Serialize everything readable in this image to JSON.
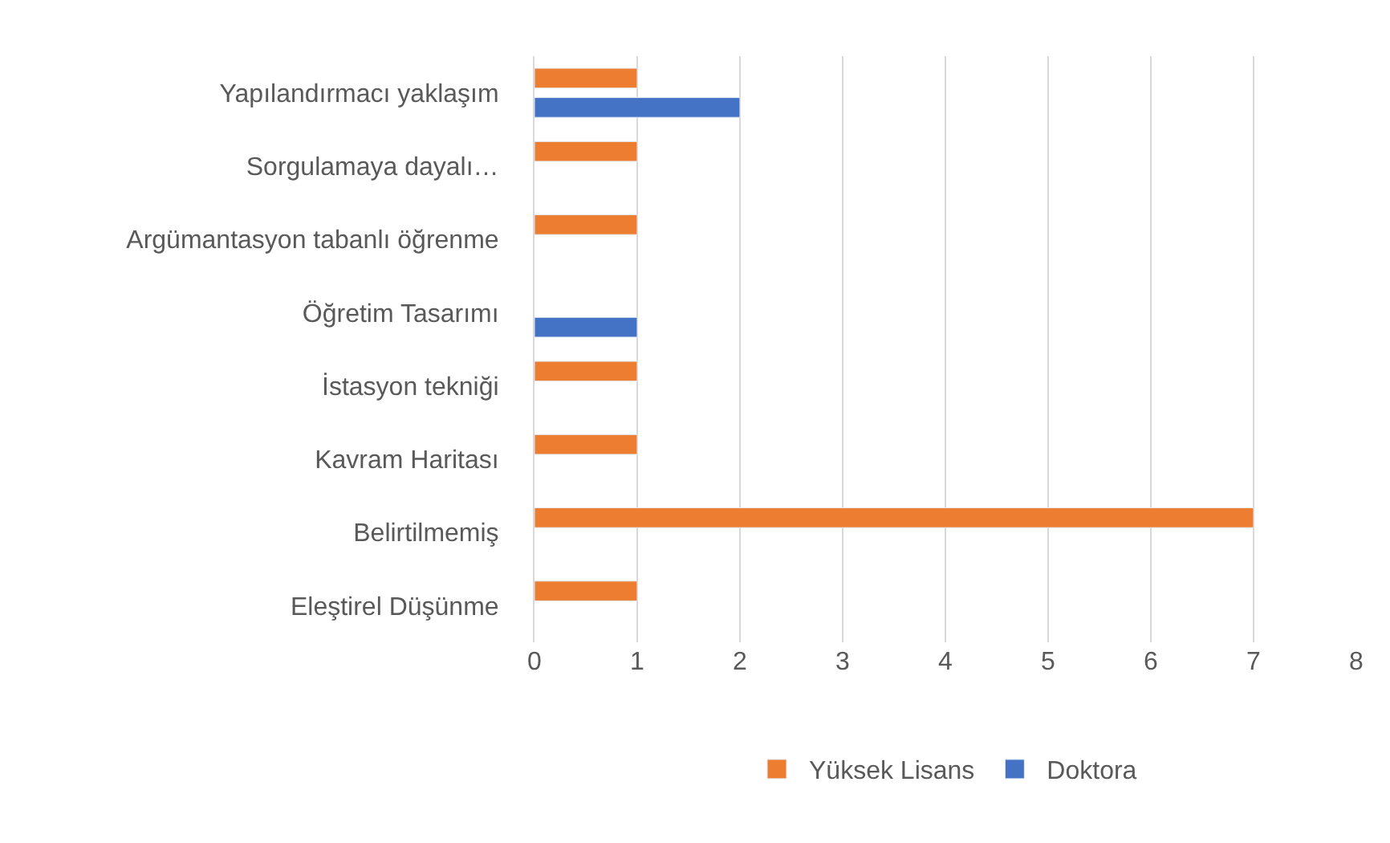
{
  "chart_data": {
    "type": "bar",
    "orientation": "horizontal",
    "categories": [
      "Yapılandırmacı yaklaşım",
      "Sorgulamaya dayalı…",
      "Argümantasyon tabanlı öğrenme",
      "Öğretim Tasarımı",
      "İstasyon tekniği",
      "Kavram Haritası",
      "Belirtilmemiş",
      "Eleştirel Düşünme"
    ],
    "series": [
      {
        "name": "Yüksek Lisans",
        "color": "#ed7d31",
        "values": [
          1,
          1,
          1,
          null,
          1,
          1,
          7,
          1
        ]
      },
      {
        "name": "Doktora",
        "color": "#4472c4",
        "values": [
          2,
          null,
          null,
          1,
          null,
          null,
          null,
          null
        ]
      }
    ],
    "xlim": [
      0,
      8
    ],
    "xticks": [
      0,
      1,
      2,
      3,
      4,
      5,
      6,
      7,
      8
    ],
    "grid": "x",
    "legend": "bottom"
  }
}
